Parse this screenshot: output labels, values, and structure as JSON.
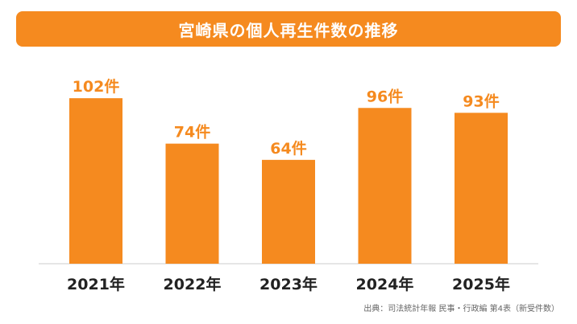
{
  "title": "宮崎県の個人再生件数の推移",
  "colors": {
    "accent": "#f58a1f",
    "value_label": "#f58a1f",
    "category_label": "#222222",
    "axis": "#cccccc"
  },
  "chart_data": {
    "type": "bar",
    "title": "宮崎県の個人再生件数の推移",
    "categories": [
      "2021年",
      "2022年",
      "2023年",
      "2024年",
      "2025年"
    ],
    "values": [
      102,
      74,
      64,
      96,
      93
    ],
    "value_labels": [
      "102件",
      "74件",
      "64件",
      "96件",
      "93件"
    ],
    "unit": "件",
    "ylim": [
      0,
      110
    ],
    "grid": false,
    "legend": "none"
  },
  "source": "出典：司法統計年報 民事・行政編 第4表（新受件数）"
}
